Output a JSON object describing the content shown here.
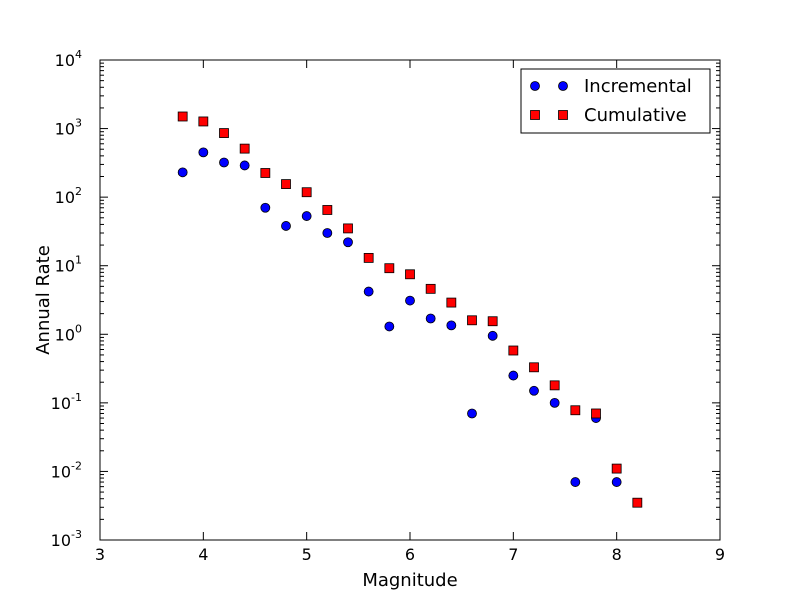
{
  "chart_data": {
    "type": "scatter",
    "xlabel": "Magnitude",
    "ylabel": "Annual Rate",
    "xlim": [
      3,
      9
    ],
    "ylim": [
      0.001,
      10000
    ],
    "yscale": "log",
    "grid": false,
    "legend_position": "top-right",
    "x_ticks": [
      3,
      4,
      5,
      6,
      7,
      8,
      9
    ],
    "y_ticks": [
      {
        "value": 0.001,
        "base": "10",
        "exp": "-3"
      },
      {
        "value": 0.01,
        "base": "10",
        "exp": "-2"
      },
      {
        "value": 0.1,
        "base": "10",
        "exp": "-1"
      },
      {
        "value": 1,
        "base": "10",
        "exp": "0"
      },
      {
        "value": 10,
        "base": "10",
        "exp": "1"
      },
      {
        "value": 100,
        "base": "10",
        "exp": "2"
      },
      {
        "value": 1000,
        "base": "10",
        "exp": "3"
      },
      {
        "value": 10000,
        "base": "10",
        "exp": "4"
      }
    ],
    "series": [
      {
        "name": "Incremental",
        "marker": "circle",
        "color": "#0000ff",
        "points": [
          {
            "x": 3.8,
            "y": 230
          },
          {
            "x": 4.0,
            "y": 450
          },
          {
            "x": 4.2,
            "y": 320
          },
          {
            "x": 4.4,
            "y": 290
          },
          {
            "x": 4.6,
            "y": 70
          },
          {
            "x": 4.8,
            "y": 38
          },
          {
            "x": 5.0,
            "y": 53
          },
          {
            "x": 5.2,
            "y": 30
          },
          {
            "x": 5.4,
            "y": 22
          },
          {
            "x": 5.6,
            "y": 4.2
          },
          {
            "x": 5.8,
            "y": 1.3
          },
          {
            "x": 6.0,
            "y": 3.1
          },
          {
            "x": 6.2,
            "y": 1.7
          },
          {
            "x": 6.4,
            "y": 1.35
          },
          {
            "x": 6.6,
            "y": 0.07
          },
          {
            "x": 6.8,
            "y": 0.95
          },
          {
            "x": 7.0,
            "y": 0.25
          },
          {
            "x": 7.2,
            "y": 0.15
          },
          {
            "x": 7.4,
            "y": 0.1
          },
          {
            "x": 7.6,
            "y": 0.007
          },
          {
            "x": 7.8,
            "y": 0.06
          },
          {
            "x": 8.0,
            "y": 0.007
          }
        ]
      },
      {
        "name": "Cumulative",
        "marker": "square",
        "color": "#ff0000",
        "points": [
          {
            "x": 3.8,
            "y": 1500
          },
          {
            "x": 4.0,
            "y": 1270
          },
          {
            "x": 4.2,
            "y": 860
          },
          {
            "x": 4.4,
            "y": 510
          },
          {
            "x": 4.6,
            "y": 225
          },
          {
            "x": 4.8,
            "y": 155
          },
          {
            "x": 5.0,
            "y": 118
          },
          {
            "x": 5.2,
            "y": 65
          },
          {
            "x": 5.4,
            "y": 35
          },
          {
            "x": 5.6,
            "y": 13
          },
          {
            "x": 5.8,
            "y": 9.2
          },
          {
            "x": 6.0,
            "y": 7.5
          },
          {
            "x": 6.2,
            "y": 4.6
          },
          {
            "x": 6.4,
            "y": 2.9
          },
          {
            "x": 6.6,
            "y": 1.6
          },
          {
            "x": 6.8,
            "y": 1.55
          },
          {
            "x": 7.0,
            "y": 0.58
          },
          {
            "x": 7.2,
            "y": 0.33
          },
          {
            "x": 7.4,
            "y": 0.18
          },
          {
            "x": 7.6,
            "y": 0.078
          },
          {
            "x": 7.8,
            "y": 0.07
          },
          {
            "x": 8.0,
            "y": 0.011
          },
          {
            "x": 8.2,
            "y": 0.0035
          }
        ]
      }
    ]
  }
}
